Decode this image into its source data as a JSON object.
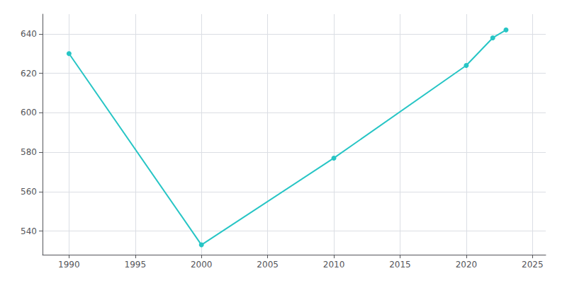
{
  "chart_data": {
    "type": "line",
    "x": [
      1990,
      2000,
      2010,
      2020,
      2022,
      2023
    ],
    "values": [
      630,
      533,
      577,
      624,
      638,
      642
    ],
    "color": "#27C5C5",
    "marker": "circle",
    "xlim": [
      1988,
      2026
    ],
    "ylim": [
      528,
      650
    ],
    "xticks": [
      1990,
      1995,
      2000,
      2005,
      2010,
      2015,
      2020,
      2025
    ],
    "yticks": [
      540,
      560,
      580,
      600,
      620,
      640
    ],
    "grid": true
  }
}
